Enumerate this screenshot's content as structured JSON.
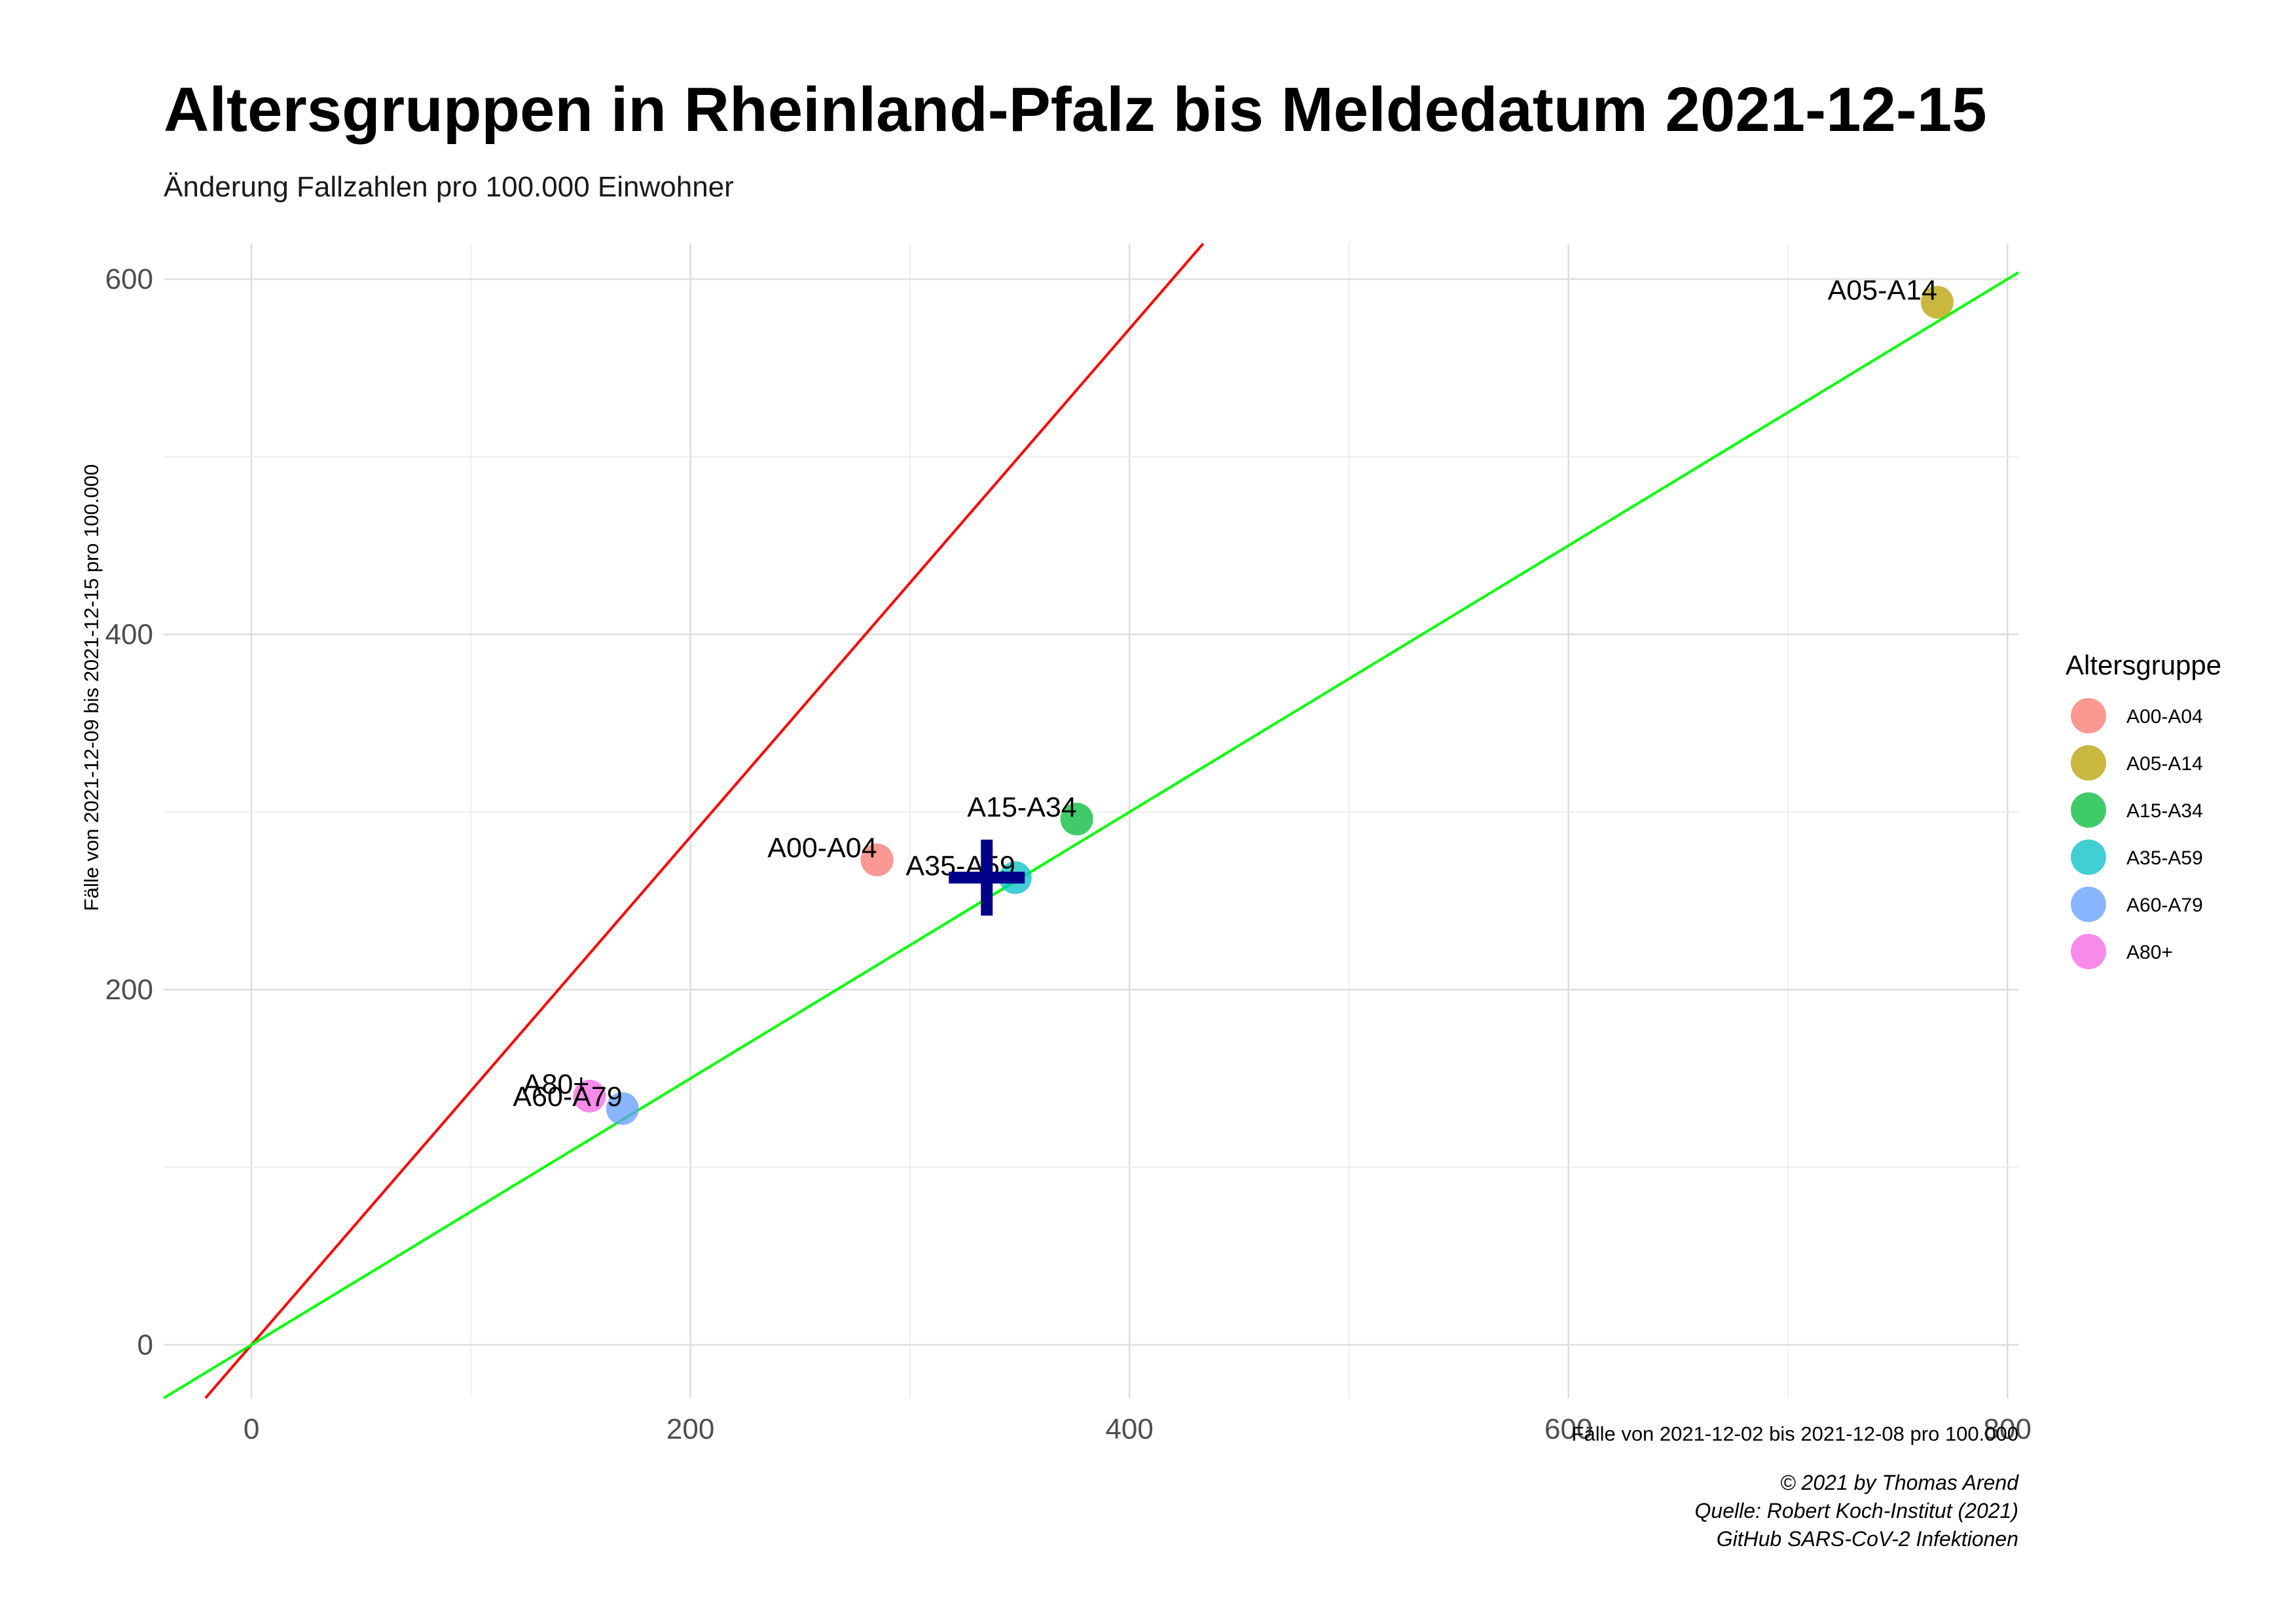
{
  "chart_data": {
    "type": "scatter",
    "title": "Altersgruppen in Rheinland-Pfalz bis Meldedatum 2021-12-15",
    "subtitle": "Änderung Fallzahlen pro 100.000 Einwohner",
    "xlabel": "Fälle von 2021-12-02 bis 2021-12-08 pro 100.000",
    "ylabel": "Fälle von 2021-12-09 bis 2021-12-15 pro 100.000",
    "xlim": [
      -40,
      805
    ],
    "ylim": [
      -30,
      620
    ],
    "x_ticks": [
      0,
      200,
      400,
      600,
      800
    ],
    "y_ticks": [
      0,
      200,
      400,
      600
    ],
    "grid": true,
    "legend_title": "Altersgruppe",
    "legend_position": "right",
    "reference_lines": [
      {
        "slope": 1.43,
        "intercept": 0,
        "color": "#ff0000"
      },
      {
        "slope": 0.75,
        "intercept": 0,
        "color": "#00ff00"
      }
    ],
    "mean_marker": {
      "x": 335,
      "y": 263,
      "color": "#00008b",
      "shape": "plus"
    },
    "series": [
      {
        "name": "A00-A04",
        "x": 285,
        "y": 273,
        "color": "#f8766d"
      },
      {
        "name": "A05-A14",
        "x": 768,
        "y": 587,
        "color": "#b79f00"
      },
      {
        "name": "A15-A34",
        "x": 376,
        "y": 296,
        "color": "#00ba38"
      },
      {
        "name": "A35-A59",
        "x": 348,
        "y": 263,
        "color": "#00bfc4"
      },
      {
        "name": "A60-A79",
        "x": 169,
        "y": 133,
        "color": "#619cff"
      },
      {
        "name": "A80+",
        "x": 154,
        "y": 140,
        "color": "#f564e3"
      }
    ],
    "caption": [
      "© 2021 by Thomas Arend",
      "Quelle: Robert Koch-Institut (2021)",
      "GitHub SARS-CoV-2 Infektionen"
    ]
  }
}
